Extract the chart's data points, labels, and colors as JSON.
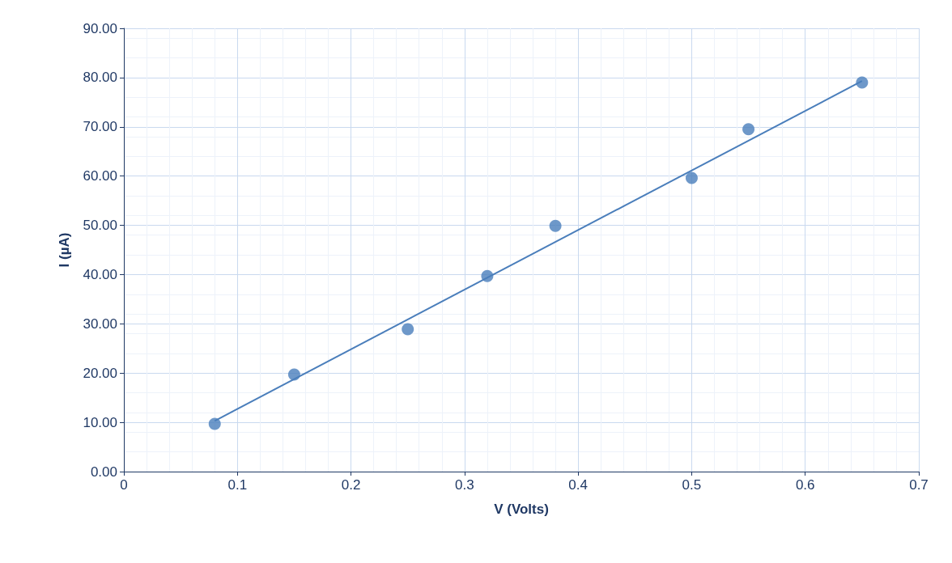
{
  "chart_data": {
    "type": "scatter",
    "xlabel": "V (Volts)",
    "ylabel": "I (µA)",
    "xlim": [
      0,
      0.7
    ],
    "xticks": [
      0,
      0.1,
      0.2,
      0.3,
      0.4,
      0.5,
      0.6,
      0.7
    ],
    "ylim": [
      0,
      90
    ],
    "yticks": [
      {
        "value": 0,
        "label": "0.00"
      },
      {
        "value": 10,
        "label": "10.00"
      },
      {
        "value": 20,
        "label": "20.00"
      },
      {
        "value": 30,
        "label": "30.00"
      },
      {
        "value": 40,
        "label": "40.00"
      },
      {
        "value": 50,
        "label": "50.00"
      },
      {
        "value": 60,
        "label": "60.00"
      },
      {
        "value": 70,
        "label": "70.00"
      },
      {
        "value": 80,
        "label": "80.00"
      },
      {
        "value": 90,
        "label": "90.00"
      }
    ],
    "grid": true,
    "marker": "circle",
    "series": [
      {
        "color": "#4a7ebb",
        "x": [
          0.08,
          0.15,
          0.25,
          0.32,
          0.38,
          0.5,
          0.55,
          0.65
        ],
        "values": [
          9.7,
          19.7,
          28.9,
          39.7,
          49.9,
          59.6,
          69.5,
          79.0
        ]
      },
      {
        "type": "line",
        "color": "#4a7ebb",
        "x": [
          0.08,
          0.65
        ],
        "values": [
          10.3,
          79.3
        ],
        "marker": "none"
      }
    ]
  }
}
